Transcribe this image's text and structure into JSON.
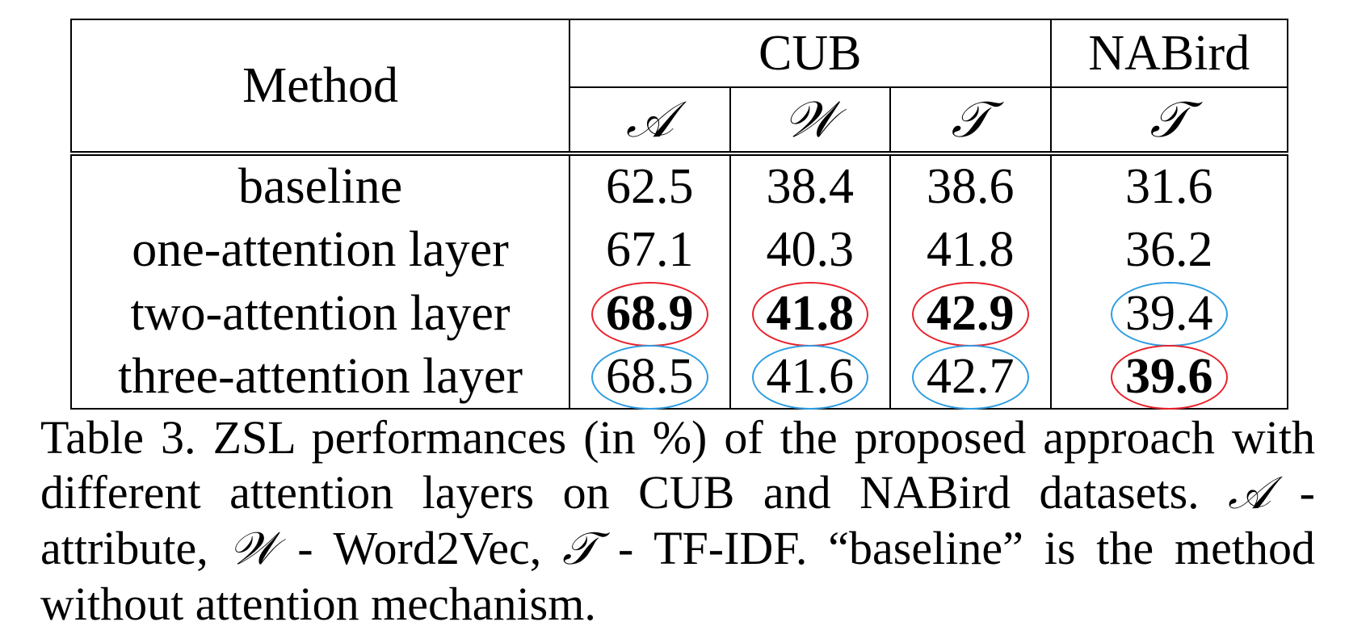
{
  "table": {
    "method_header": "Method",
    "group_headers": [
      "CUB",
      "NABird"
    ],
    "sub_headers": [
      "𝒜",
      "𝒲",
      "𝒯",
      "𝒯"
    ],
    "rows": [
      {
        "method": "baseline",
        "values": [
          "62.5",
          "38.4",
          "38.6",
          "31.6"
        ]
      },
      {
        "method": "one-attention layer",
        "values": [
          "67.1",
          "40.3",
          "41.8",
          "36.2"
        ]
      },
      {
        "method": "two-attention layer",
        "values": [
          "68.9",
          "41.8",
          "42.9",
          "39.4"
        ]
      },
      {
        "method": "three-attention layer",
        "values": [
          "68.5",
          "41.6",
          "42.7",
          "39.6"
        ]
      }
    ],
    "highlight_colors": {
      "best": "#e8222b",
      "second": "#2f9de0"
    }
  },
  "caption": {
    "part1": "Table 3. ZSL performances (in %) of the proposed approach with different attention layers on CUB and NABird datasets. ",
    "sym_a": "𝒜",
    "part2": " - attribute, ",
    "sym_w": "𝒲",
    "part3": " - Word2Vec, ",
    "sym_t": "𝒯",
    "part4": " - TF-IDF. “baseline” is the method without attention mechanism."
  }
}
